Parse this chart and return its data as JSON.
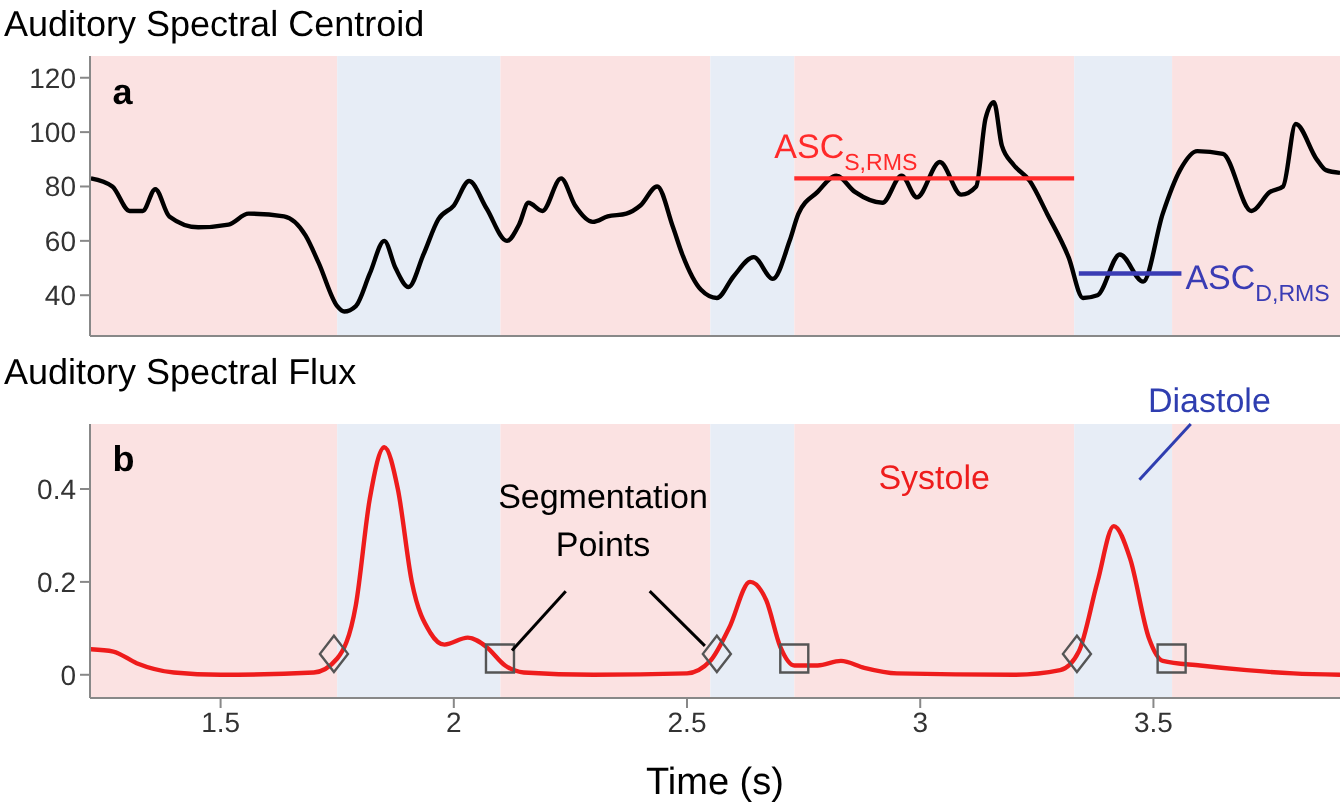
{
  "chart_data": [
    {
      "type": "line",
      "title": "Auditory Spectral Centroid",
      "annotations": [
        "a"
      ],
      "xlim": [
        1.22,
        3.9
      ],
      "xticks": [
        1.5,
        2,
        2.5,
        3,
        3.5
      ],
      "ylim": [
        25,
        128
      ],
      "yticks": [
        40,
        60,
        80,
        100,
        120
      ],
      "tick_labels": "y",
      "bands": [
        {
          "axis": "x",
          "from": 1.22,
          "to": 1.75,
          "color": "#fbe2e2"
        },
        {
          "axis": "x",
          "from": 1.75,
          "to": 2.1,
          "color": "#e7edf6"
        },
        {
          "axis": "x",
          "from": 2.1,
          "to": 2.55,
          "color": "#fbe2e2"
        },
        {
          "axis": "x",
          "from": 2.55,
          "to": 2.73,
          "color": "#e7edf6"
        },
        {
          "axis": "x",
          "from": 2.73,
          "to": 3.33,
          "color": "#fbe2e2"
        },
        {
          "axis": "x",
          "from": 3.33,
          "to": 3.54,
          "color": "#e7edf6"
        },
        {
          "axis": "x",
          "from": 3.54,
          "to": 3.9,
          "color": "#fbe2e2"
        }
      ],
      "series": [
        {
          "color": "#000000",
          "x": [
            1.222,
            1.268,
            1.305,
            1.333,
            1.36,
            1.39,
            1.452,
            1.517,
            1.56,
            1.636,
            1.682,
            1.71,
            1.75,
            1.765,
            1.79,
            1.82,
            1.851,
            1.875,
            1.903,
            1.935,
            1.967,
            2.0,
            2.033,
            2.07,
            2.114,
            2.14,
            2.16,
            2.19,
            2.23,
            2.26,
            2.298,
            2.33,
            2.37,
            2.4,
            2.436,
            2.47,
            2.49,
            2.53,
            2.564,
            2.6,
            2.643,
            2.684,
            2.72,
            2.739,
            2.78,
            2.82,
            2.86,
            2.919,
            2.96,
            2.993,
            3.042,
            3.088,
            3.12,
            3.14,
            3.158,
            3.175,
            3.2,
            3.235,
            3.272,
            3.318,
            3.349,
            3.38,
            3.428,
            3.478,
            3.52,
            3.557,
            3.594,
            3.649,
            3.71,
            3.75,
            3.778,
            3.805,
            3.85,
            3.87,
            3.9
          ],
          "values": [
            83,
            80,
            71,
            71,
            79,
            69,
            65,
            66,
            70,
            69,
            62,
            52,
            36,
            34,
            36,
            48,
            60,
            50,
            43,
            55,
            68,
            73,
            82,
            72,
            60,
            66,
            74,
            71,
            83,
            73,
            67,
            69,
            70,
            73,
            80,
            65,
            55,
            42,
            39,
            47,
            54,
            46,
            60,
            70,
            78,
            84,
            78,
            74,
            84,
            76,
            89,
            77,
            80,
            105,
            111,
            95,
            88,
            82,
            70,
            54,
            39,
            40,
            55,
            45,
            70,
            86,
            93,
            92,
            71,
            78,
            80,
            103,
            90,
            86,
            85
          ]
        },
        {
          "name": "ASC$_{S,RMS}$",
          "color": "#ff2a2a",
          "x": [
            2.73,
            3.33
          ],
          "values": [
            83,
            83
          ]
        },
        {
          "name": "ASC$_{D,RMS}$",
          "color": "#3a3cb4",
          "x": [
            3.34,
            3.56
          ],
          "values": [
            48,
            48
          ]
        }
      ]
    },
    {
      "type": "line",
      "title": "Auditory Spectral Flux",
      "xlabel": "Time (s)",
      "annotations": [
        "b",
        {
          "text": "Segmentation Points",
          "x": 2.099,
          "y": 0.035
        },
        "Systole",
        "Diastole"
      ],
      "xlim": [
        1.22,
        3.9
      ],
      "xticks": [
        1.5,
        2,
        2.5,
        3,
        3.5
      ],
      "ylim": [
        -0.05,
        0.54
      ],
      "yticks": [
        0,
        0.2,
        0.4
      ],
      "bands": [
        {
          "axis": "x",
          "from": 1.22,
          "to": 1.75,
          "color": "#fbe2e2"
        },
        {
          "axis": "x",
          "from": 1.75,
          "to": 2.1,
          "color": "#e7edf6"
        },
        {
          "axis": "x",
          "from": 2.1,
          "to": 2.55,
          "color": "#fbe2e2"
        },
        {
          "axis": "x",
          "from": 2.55,
          "to": 2.73,
          "color": "#e7edf6"
        },
        {
          "axis": "x",
          "from": 2.73,
          "to": 3.33,
          "color": "#fbe2e2"
        },
        {
          "axis": "x",
          "from": 3.33,
          "to": 3.54,
          "color": "#e7edf6"
        },
        {
          "axis": "x",
          "from": 3.54,
          "to": 3.9,
          "color": "#fbe2e2"
        }
      ],
      "series": [
        {
          "color": "#ee1c1c",
          "x": [
            1.222,
            1.27,
            1.32,
            1.4,
            1.5,
            1.7,
            1.75,
            1.79,
            1.82,
            1.851,
            1.88,
            1.91,
            1.95,
            1.98,
            2.03,
            2.07,
            2.11,
            2.15,
            2.3,
            2.5,
            2.55,
            2.59,
            2.635,
            2.67,
            2.7,
            2.73,
            2.78,
            2.83,
            2.88,
            2.95,
            3.2,
            3.3,
            3.34,
            3.38,
            3.415,
            3.45,
            3.49,
            3.52,
            3.6,
            3.7,
            3.8,
            3.9
          ],
          "values": [
            0.055,
            0.05,
            0.025,
            0.005,
            0,
            0.005,
            0.035,
            0.15,
            0.38,
            0.49,
            0.4,
            0.2,
            0.09,
            0.065,
            0.08,
            0.06,
            0.02,
            0.005,
            0,
            0.003,
            0.03,
            0.1,
            0.2,
            0.16,
            0.06,
            0.02,
            0.02,
            0.03,
            0.015,
            0.003,
            0,
            0.01,
            0.05,
            0.2,
            0.32,
            0.25,
            0.08,
            0.03,
            0.02,
            0.01,
            0.003,
            0
          ]
        },
        {
          "type": "scatter",
          "marker": "diamond",
          "color": "#555555",
          "x": [
            1.743,
            2.564,
            3.336
          ],
          "values": [
            0.045,
            0.045,
            0.045
          ]
        },
        {
          "type": "scatter",
          "marker": "square",
          "color": "#555555",
          "x": [
            2.099,
            2.73,
            3.539
          ],
          "values": [
            0.035,
            0.035,
            0.035
          ]
        }
      ]
    }
  ]
}
